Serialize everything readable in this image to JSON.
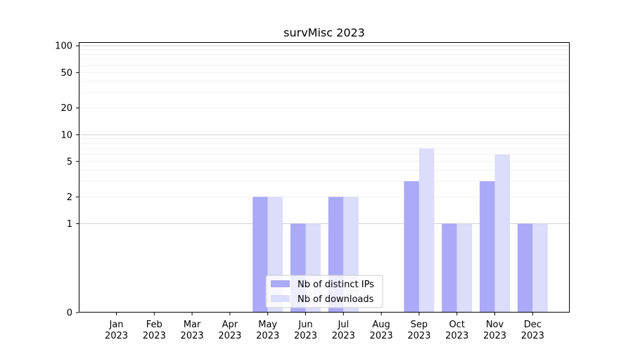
{
  "chart_data": {
    "type": "bar",
    "title": "survMisc 2023",
    "xlabel": "",
    "ylabel": "",
    "categories": [
      [
        "Jan",
        "2023"
      ],
      [
        "Feb",
        "2023"
      ],
      [
        "Mar",
        "2023"
      ],
      [
        "Apr",
        "2023"
      ],
      [
        "May",
        "2023"
      ],
      [
        "Jun",
        "2023"
      ],
      [
        "Jul",
        "2023"
      ],
      [
        "Aug",
        "2023"
      ],
      [
        "Sep",
        "2023"
      ],
      [
        "Oct",
        "2023"
      ],
      [
        "Nov",
        "2023"
      ],
      [
        "Dec",
        "2023"
      ]
    ],
    "series": [
      {
        "name": "Nb of distinct IPs",
        "color": "#aaaaf8",
        "values": [
          0,
          0,
          0,
          0,
          2,
          1,
          2,
          0,
          3,
          1,
          3,
          1
        ]
      },
      {
        "name": "Nb of downloads",
        "color": "#dcdcfb",
        "values": [
          0,
          0,
          0,
          0,
          2,
          1,
          2,
          0,
          7,
          1,
          6,
          1
        ]
      }
    ],
    "y_scale": "symlog",
    "ylim": [
      0,
      110
    ],
    "yticks": [
      0,
      1,
      2,
      5,
      10,
      20,
      50,
      100
    ],
    "grid": true,
    "legend_position": "lower-center"
  }
}
